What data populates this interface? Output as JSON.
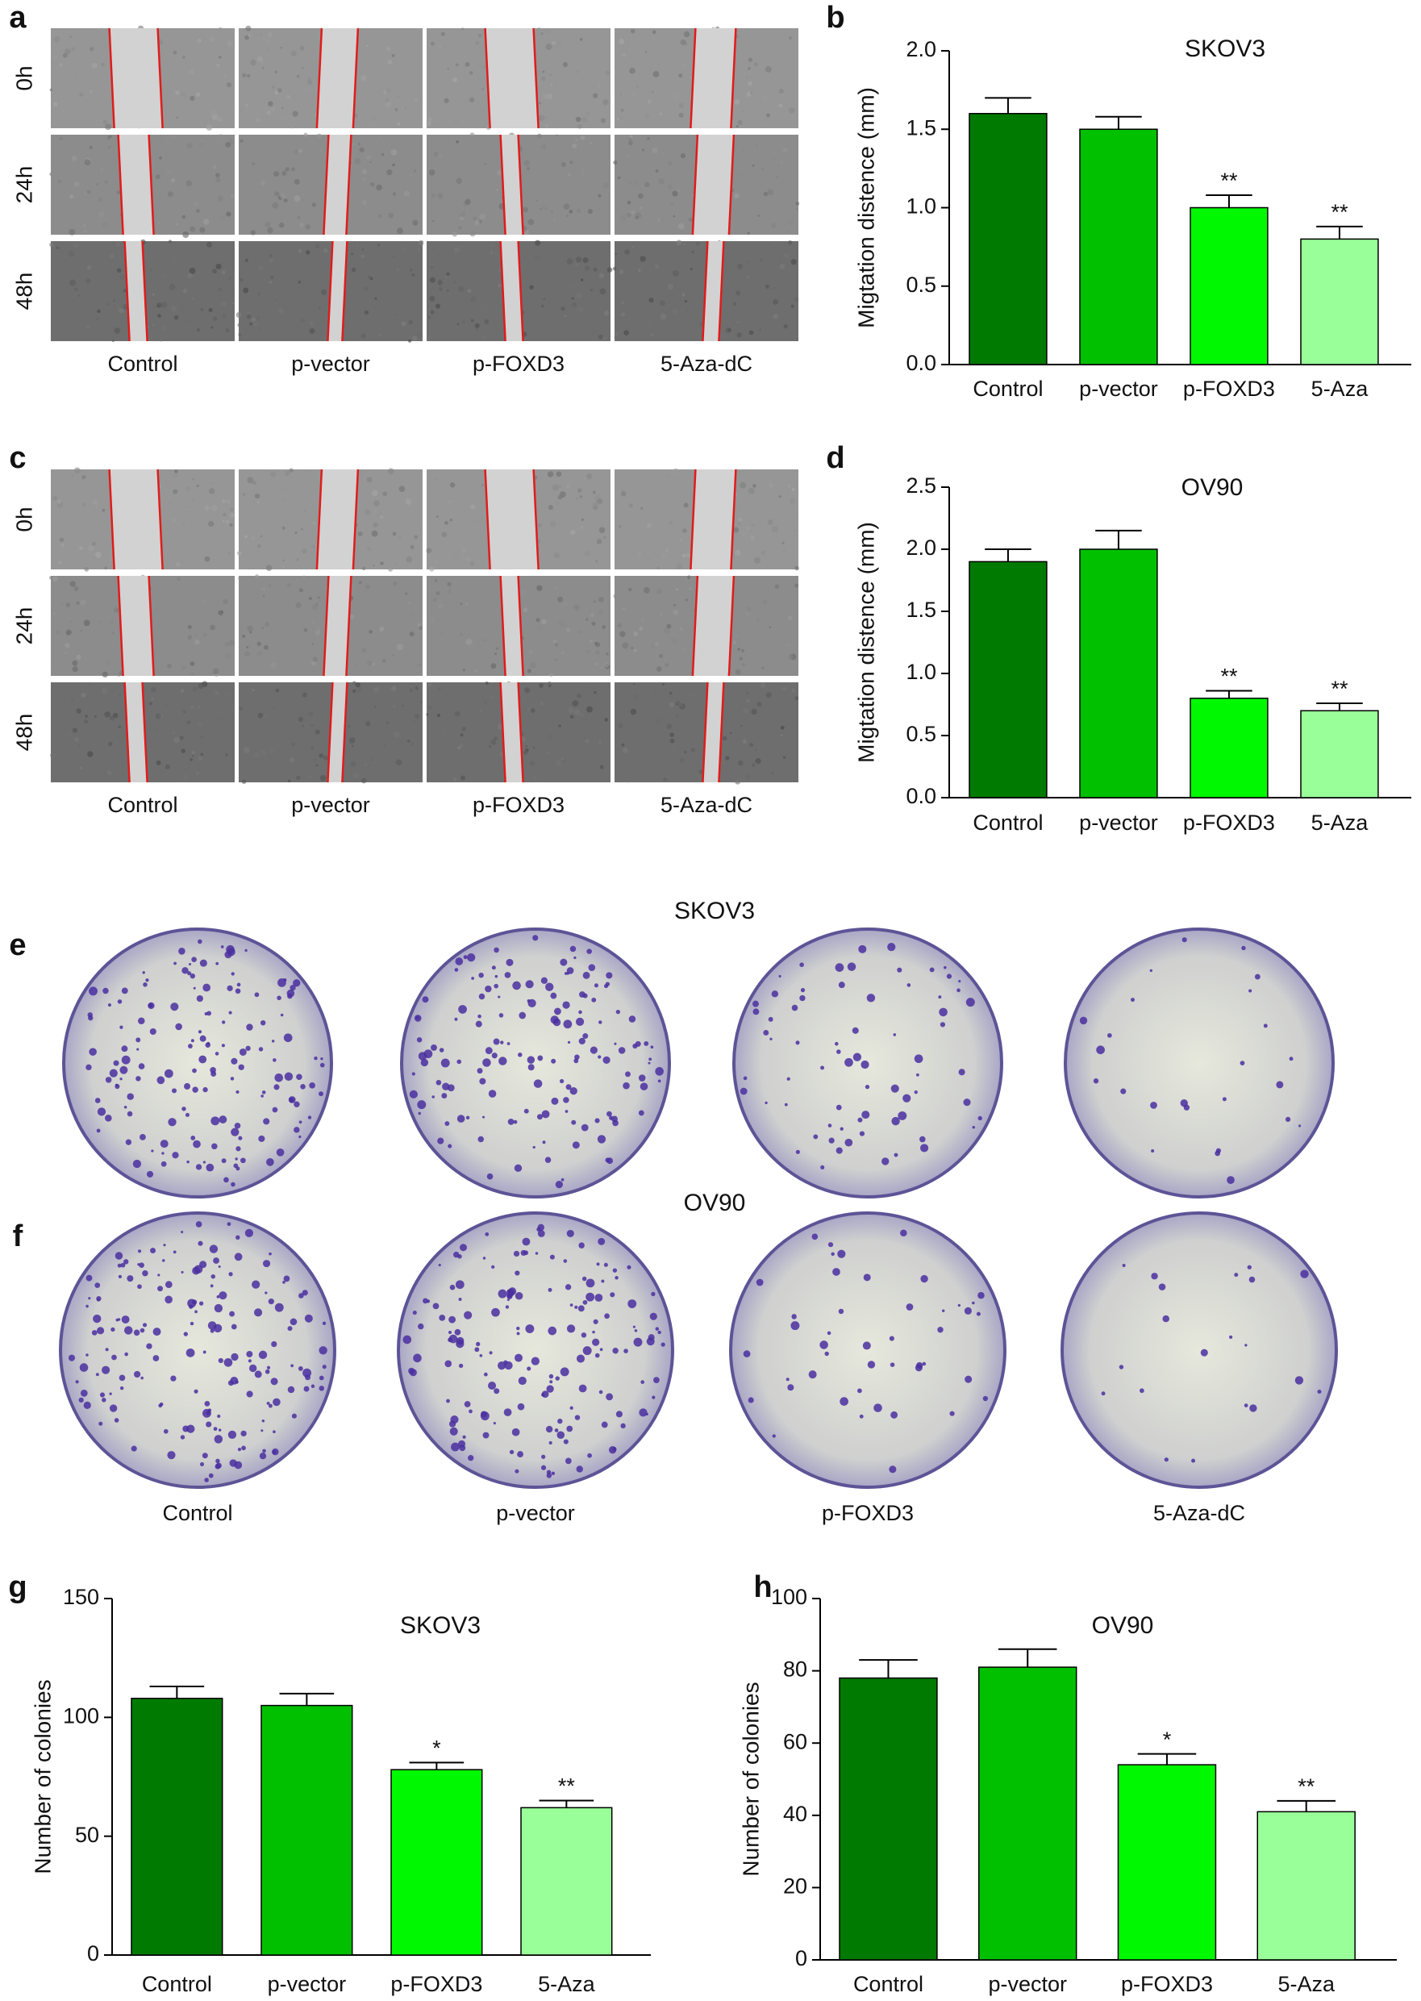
{
  "wound_assays": [
    {
      "panel": "a",
      "rows": [
        "0h",
        "24h",
        "48h"
      ],
      "columns": [
        "Control",
        "p-vector",
        "p-FOXD3",
        "5-Aza-dC"
      ]
    },
    {
      "panel": "c",
      "rows": [
        "0h",
        "24h",
        "48h"
      ],
      "columns": [
        "Control",
        "p-vector",
        "p-FOXD3",
        "5-Aza-dC"
      ]
    }
  ],
  "colony_assays": {
    "panel_labels": [
      "e",
      "f"
    ],
    "titles": [
      "SKOV3",
      "OV90"
    ],
    "columns": [
      "Control",
      "p-vector",
      "p-FOXD3",
      "5-Aza-dC"
    ]
  },
  "chart_data": [
    {
      "type": "bar",
      "panel": "b",
      "title": "SKOV3",
      "y_label": "Migtation distence (mm)",
      "categories": [
        "Control",
        "p-vector",
        "p-FOXD3",
        "5-Aza"
      ],
      "values": [
        1.6,
        1.5,
        1.0,
        0.8
      ],
      "errors": [
        0.1,
        0.08,
        0.08,
        0.08
      ],
      "significance": [
        null,
        null,
        "**",
        "**"
      ],
      "colors": [
        "#007a00",
        "#00c000",
        "#00f800",
        "#99ff99"
      ],
      "ylim": [
        0,
        2
      ],
      "yticks": [
        {
          "value": 0,
          "label": "0.0"
        },
        0.5,
        {
          "value": 1,
          "label": "1.0"
        },
        1.5,
        {
          "value": 2,
          "label": "2.0"
        }
      ]
    },
    {
      "type": "bar",
      "panel": "d",
      "title": "OV90",
      "y_label": "Migtation distence (mm)",
      "categories": [
        "Control",
        "p-vector",
        "p-FOXD3",
        "5-Aza"
      ],
      "values": [
        1.9,
        2.0,
        0.8,
        0.7
      ],
      "errors": [
        0.1,
        0.15,
        0.06,
        0.06
      ],
      "significance": [
        null,
        null,
        "**",
        "**"
      ],
      "colors": [
        "#007a00",
        "#00c000",
        "#00f800",
        "#99ff99"
      ],
      "ylim": [
        0,
        2.5
      ],
      "yticks": [
        {
          "value": 0,
          "label": "0.0"
        },
        0.5,
        {
          "value": 1,
          "label": "1.0"
        },
        1.5,
        {
          "value": 2,
          "label": "2.0"
        },
        2.5
      ]
    },
    {
      "type": "bar",
      "panel": "g",
      "title": "SKOV3",
      "y_label": "Number of colonies",
      "categories": [
        "Control",
        "p-vector",
        "p-FOXD3",
        "5-Aza"
      ],
      "values": [
        108,
        105,
        78,
        62
      ],
      "errors": [
        5,
        5,
        3,
        3
      ],
      "significance": [
        null,
        null,
        "*",
        "**"
      ],
      "colors": [
        "#007a00",
        "#00c000",
        "#00f800",
        "#99ff99"
      ],
      "ylim": [
        0,
        150
      ],
      "yticks": [
        0,
        50,
        100,
        150
      ]
    },
    {
      "type": "bar",
      "panel": "h",
      "title": "OV90",
      "y_label": "Number of colonies",
      "categories": [
        "Control",
        "p-vector",
        "p-FOXD3",
        "5-Aza"
      ],
      "values": [
        78,
        81,
        54,
        41
      ],
      "errors": [
        5,
        5,
        3,
        3
      ],
      "significance": [
        null,
        null,
        "*",
        "**"
      ],
      "colors": [
        "#007a00",
        "#00c000",
        "#00f800",
        "#99ff99"
      ],
      "ylim": [
        0,
        100
      ],
      "yticks": [
        0,
        20,
        40,
        60,
        80,
        100
      ]
    }
  ]
}
